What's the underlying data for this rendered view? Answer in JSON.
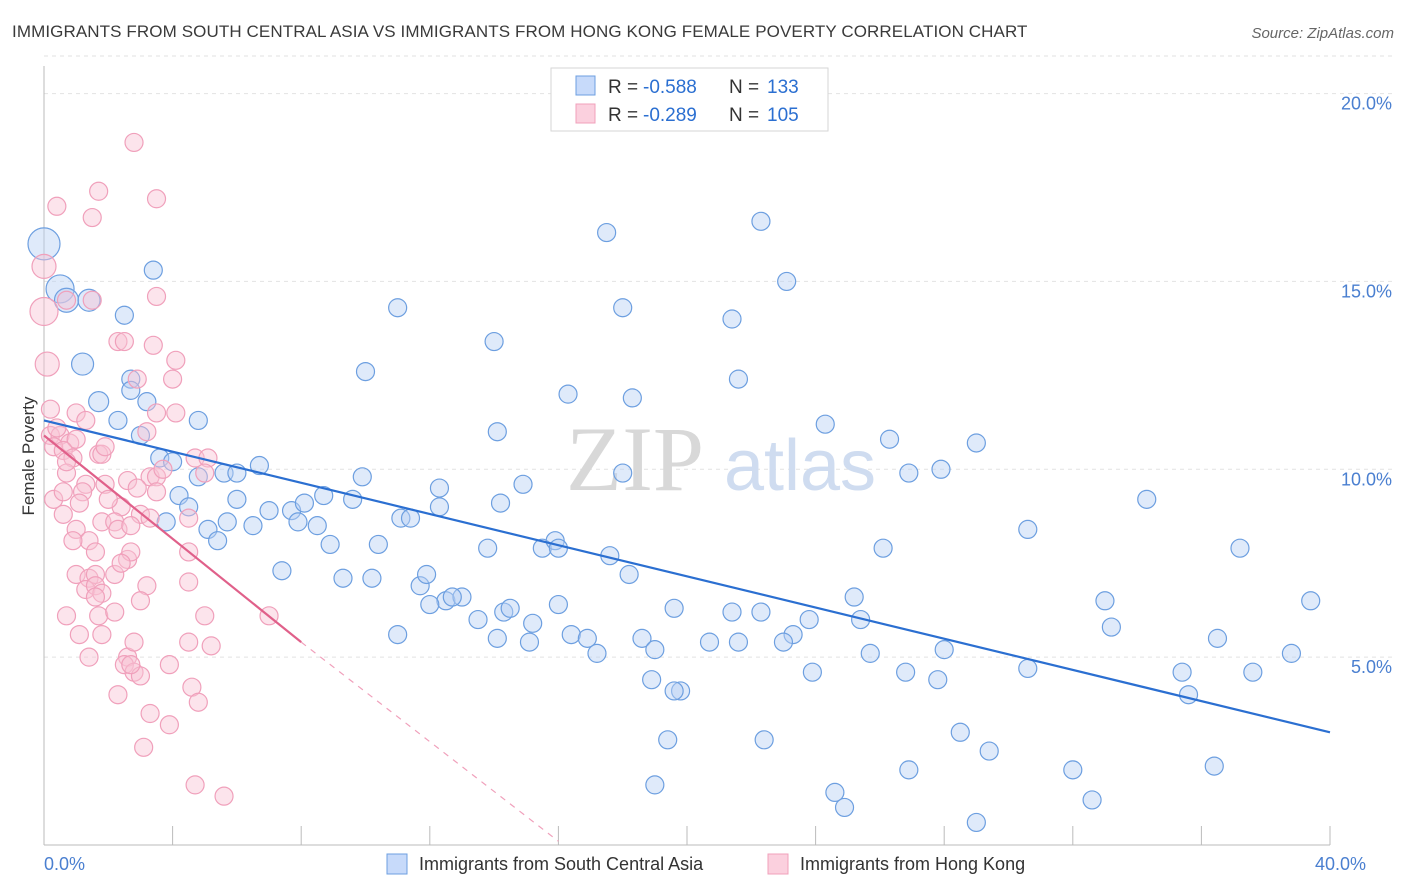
{
  "title": "IMMIGRANTS FROM SOUTH CENTRAL ASIA VS IMMIGRANTS FROM HONG KONG FEMALE POVERTY CORRELATION CHART",
  "source": "Source: ZipAtlas.com",
  "watermark": {
    "zip": "ZIP",
    "atlas": "atlas"
  },
  "colors": {
    "blue": "#6d9fe0",
    "blue_line": "#2b6fd1",
    "pink": "#f0a0bb",
    "pink_line": "#e0608a",
    "tick_text": "#4a7fd0"
  },
  "chart_data": {
    "type": "scatter",
    "xlabel": "",
    "ylabel": "Female Poverty",
    "xlim": [
      0,
      40
    ],
    "ylim": [
      0,
      21
    ],
    "x_ticks": [
      {
        "v": 0,
        "label": "0.0%"
      },
      {
        "v": 40,
        "label": "40.0%"
      }
    ],
    "y_ticks": [
      {
        "v": 5,
        "label": "5.0%"
      },
      {
        "v": 10,
        "label": "10.0%"
      },
      {
        "v": 15,
        "label": "15.0%"
      },
      {
        "v": 20,
        "label": "20.0%"
      }
    ],
    "legend": {
      "placement": "top-center",
      "rows": [
        {
          "r_label": "R =",
          "r_value": "-0.588",
          "n_label": "N =",
          "n_value": "133"
        },
        {
          "r_label": "R =",
          "r_value": "-0.289",
          "n_label": "N =",
          "n_value": "105"
        }
      ]
    },
    "series": [
      {
        "name": "Immigrants from South Central Asia",
        "color": "#6d9fe0",
        "trend": {
          "x": [
            0,
            40
          ],
          "y": [
            11.3,
            3.0
          ]
        },
        "points": [
          [
            0,
            16.0,
            16
          ],
          [
            0.5,
            14.8,
            14
          ],
          [
            0.7,
            14.5,
            12
          ],
          [
            1.4,
            14.5,
            11
          ],
          [
            3.4,
            15.3,
            9
          ],
          [
            2.5,
            14.1,
            9
          ],
          [
            1.2,
            12.8,
            11
          ],
          [
            2.7,
            12.4,
            9
          ],
          [
            1.7,
            11.8,
            10
          ],
          [
            2.7,
            12.1,
            9
          ],
          [
            3.2,
            11.8,
            9
          ],
          [
            2.3,
            11.3,
            9
          ],
          [
            3.0,
            10.9,
            9
          ],
          [
            4.8,
            11.3,
            9
          ],
          [
            3.6,
            10.3,
            9
          ],
          [
            4.0,
            10.2,
            9
          ],
          [
            5.6,
            9.9,
            9
          ],
          [
            6.0,
            9.9,
            9
          ],
          [
            6.7,
            10.1,
            9
          ],
          [
            4.8,
            9.8,
            9
          ],
          [
            4.2,
            9.3,
            9
          ],
          [
            4.5,
            9.0,
            9
          ],
          [
            6.0,
            9.2,
            9
          ],
          [
            3.8,
            8.6,
            9
          ],
          [
            5.7,
            8.6,
            9
          ],
          [
            5.1,
            8.4,
            9
          ],
          [
            5.4,
            8.1,
            9
          ],
          [
            6.5,
            8.5,
            9
          ],
          [
            7.0,
            8.9,
            9
          ],
          [
            7.7,
            8.9,
            9
          ],
          [
            8.1,
            9.1,
            9
          ],
          [
            8.7,
            9.3,
            9
          ],
          [
            9.6,
            9.2,
            9
          ],
          [
            9.9,
            9.8,
            9
          ],
          [
            7.9,
            8.6,
            9
          ],
          [
            8.5,
            8.5,
            9
          ],
          [
            8.9,
            8.0,
            9
          ],
          [
            10.4,
            8.0,
            9
          ],
          [
            11.1,
            8.7,
            9
          ],
          [
            11.4,
            8.7,
            9
          ],
          [
            7.4,
            7.3,
            9
          ],
          [
            9.3,
            7.1,
            9
          ],
          [
            10.2,
            7.1,
            9
          ],
          [
            11.7,
            6.9,
            9
          ],
          [
            11.9,
            7.2,
            9
          ],
          [
            12.5,
            6.5,
            9
          ],
          [
            13.0,
            6.6,
            9
          ],
          [
            12.0,
            6.4,
            9
          ],
          [
            12.7,
            6.6,
            9
          ],
          [
            13.5,
            6.0,
            9
          ],
          [
            11.0,
            5.6,
            9
          ],
          [
            14.1,
            5.5,
            9
          ],
          [
            13.8,
            7.9,
            9
          ],
          [
            14.2,
            9.1,
            9
          ],
          [
            12.3,
            9.0,
            9
          ],
          [
            14.3,
            6.2,
            9
          ],
          [
            14.5,
            6.3,
            9
          ],
          [
            14.9,
            9.6,
            9
          ],
          [
            15.2,
            5.9,
            9
          ],
          [
            15.1,
            5.4,
            9
          ],
          [
            15.5,
            7.9,
            9
          ],
          [
            15.9,
            8.1,
            9
          ],
          [
            16.0,
            6.4,
            9
          ],
          [
            16.4,
            5.6,
            9
          ],
          [
            16.0,
            7.9,
            9
          ],
          [
            16.9,
            5.5,
            9
          ],
          [
            17.2,
            5.1,
            9
          ],
          [
            17.6,
            7.7,
            9
          ],
          [
            18.0,
            9.9,
            9
          ],
          [
            18.2,
            7.2,
            9
          ],
          [
            18.6,
            5.5,
            9
          ],
          [
            18.9,
            4.4,
            9
          ],
          [
            19.0,
            5.2,
            9
          ],
          [
            19.6,
            6.3,
            9
          ],
          [
            19.8,
            4.1,
            9
          ],
          [
            19.6,
            4.1,
            9
          ],
          [
            19.4,
            2.8,
            9
          ],
          [
            18.3,
            11.9,
            9
          ],
          [
            16.3,
            12.0,
            9
          ],
          [
            14.0,
            13.4,
            9
          ],
          [
            12.3,
            9.5,
            9
          ],
          [
            10.0,
            12.6,
            9
          ],
          [
            11.0,
            14.3,
            9
          ],
          [
            14.1,
            11.0,
            9
          ],
          [
            17.5,
            16.3,
            9
          ],
          [
            18.0,
            14.3,
            9
          ],
          [
            19.0,
            1.6,
            9
          ],
          [
            20.7,
            5.4,
            9
          ],
          [
            21.6,
            5.4,
            9
          ],
          [
            21.4,
            14.0,
            9
          ],
          [
            21.6,
            12.4,
            9
          ],
          [
            21.4,
            6.2,
            9
          ],
          [
            22.3,
            6.2,
            9
          ],
          [
            22.4,
            2.8,
            9
          ],
          [
            22.3,
            16.6,
            9
          ],
          [
            23.3,
            5.6,
            9
          ],
          [
            23.0,
            5.4,
            9
          ],
          [
            23.8,
            6.0,
            9
          ],
          [
            23.1,
            15.0,
            9
          ],
          [
            23.9,
            4.6,
            9
          ],
          [
            25.2,
            6.6,
            9
          ],
          [
            25.4,
            6.0,
            9
          ],
          [
            24.6,
            1.4,
            9
          ],
          [
            24.3,
            11.2,
            9
          ],
          [
            25.7,
            5.1,
            9
          ],
          [
            24.9,
            1.0,
            9
          ],
          [
            26.1,
            7.9,
            9
          ],
          [
            26.3,
            10.8,
            9
          ],
          [
            26.8,
            4.6,
            9
          ],
          [
            26.9,
            2.0,
            9
          ],
          [
            26.9,
            9.9,
            9
          ],
          [
            27.8,
            4.4,
            9
          ],
          [
            27.9,
            10.0,
            9
          ],
          [
            28.0,
            5.2,
            9
          ],
          [
            28.5,
            3.0,
            9
          ],
          [
            29.0,
            10.7,
            9
          ],
          [
            29.4,
            2.5,
            9
          ],
          [
            30.6,
            8.4,
            9
          ],
          [
            29.0,
            0.6,
            9
          ],
          [
            30.6,
            4.7,
            9
          ],
          [
            32.0,
            2.0,
            9
          ],
          [
            32.6,
            1.2,
            9
          ],
          [
            33.0,
            6.5,
            9
          ],
          [
            33.2,
            5.8,
            9
          ],
          [
            34.3,
            9.2,
            9
          ],
          [
            35.4,
            4.6,
            9
          ],
          [
            35.6,
            4.0,
            9
          ],
          [
            36.4,
            2.1,
            9
          ],
          [
            36.5,
            5.5,
            9
          ],
          [
            37.2,
            7.9,
            9
          ],
          [
            37.6,
            4.6,
            9
          ],
          [
            38.8,
            5.1,
            9
          ],
          [
            39.4,
            6.5,
            9
          ]
        ]
      },
      {
        "name": "Immigrants from Hong Kong",
        "color": "#f0a0bb",
        "trend": {
          "x": [
            0,
            8
          ],
          "y": [
            10.9,
            5.4
          ]
        },
        "trend_dashed": {
          "x": [
            8,
            16
          ],
          "y": [
            5.4,
            0.1
          ]
        },
        "points": [
          [
            0,
            14.2,
            14
          ],
          [
            0,
            15.4,
            12
          ],
          [
            0.1,
            12.8,
            12
          ],
          [
            0.4,
            17.0,
            9
          ],
          [
            1.5,
            16.7,
            9
          ],
          [
            1.7,
            17.4,
            9
          ],
          [
            2.8,
            18.7,
            9
          ],
          [
            3.5,
            17.2,
            9
          ],
          [
            0.7,
            14.5,
            9
          ],
          [
            1.5,
            14.5,
            9
          ],
          [
            3.5,
            14.6,
            9
          ],
          [
            2.3,
            13.4,
            9
          ],
          [
            2.5,
            13.4,
            9
          ],
          [
            3.4,
            13.3,
            9
          ],
          [
            4.1,
            12.9,
            9
          ],
          [
            2.9,
            12.4,
            9
          ],
          [
            4.0,
            12.4,
            9
          ],
          [
            0.2,
            11.6,
            9
          ],
          [
            1.0,
            11.5,
            9
          ],
          [
            1.3,
            11.3,
            9
          ],
          [
            3.5,
            11.5,
            9
          ],
          [
            4.1,
            11.5,
            9
          ],
          [
            3.2,
            11.0,
            9
          ],
          [
            0.2,
            10.9,
            9
          ],
          [
            0.5,
            10.9,
            9
          ],
          [
            0.8,
            10.7,
            9
          ],
          [
            1.0,
            10.8,
            9
          ],
          [
            0.3,
            10.6,
            9
          ],
          [
            0.6,
            10.5,
            9
          ],
          [
            0.9,
            10.3,
            9
          ],
          [
            1.7,
            10.4,
            9
          ],
          [
            1.8,
            10.4,
            9
          ],
          [
            4.7,
            10.3,
            9
          ],
          [
            5.1,
            10.3,
            9
          ],
          [
            0.7,
            9.9,
            9
          ],
          [
            1.3,
            9.6,
            9
          ],
          [
            1.9,
            9.6,
            9
          ],
          [
            2.6,
            9.7,
            9
          ],
          [
            3.3,
            9.8,
            9
          ],
          [
            3.5,
            9.8,
            9
          ],
          [
            5.0,
            9.9,
            9
          ],
          [
            0.3,
            9.2,
            9
          ],
          [
            0.6,
            9.4,
            9
          ],
          [
            1.2,
            9.4,
            9
          ],
          [
            2.4,
            9.0,
            9
          ],
          [
            2.9,
            9.5,
            9
          ],
          [
            3.5,
            9.4,
            9
          ],
          [
            3.0,
            8.8,
            9
          ],
          [
            0.6,
            8.8,
            9
          ],
          [
            1.0,
            8.4,
            9
          ],
          [
            1.8,
            8.6,
            9
          ],
          [
            2.2,
            8.6,
            9
          ],
          [
            2.3,
            8.4,
            9
          ],
          [
            2.7,
            8.5,
            9
          ],
          [
            3.3,
            8.7,
            9
          ],
          [
            4.5,
            8.7,
            9
          ],
          [
            1.4,
            8.1,
            9
          ],
          [
            1.6,
            7.8,
            9
          ],
          [
            2.6,
            7.6,
            9
          ],
          [
            2.7,
            7.8,
            9
          ],
          [
            4.5,
            7.8,
            9
          ],
          [
            1.0,
            7.2,
            9
          ],
          [
            1.4,
            7.1,
            9
          ],
          [
            1.6,
            7.2,
            9
          ],
          [
            2.2,
            7.2,
            9
          ],
          [
            2.4,
            7.5,
            9
          ],
          [
            4.5,
            7.0,
            9
          ],
          [
            1.3,
            6.8,
            9
          ],
          [
            1.6,
            6.9,
            9
          ],
          [
            1.8,
            6.7,
            9
          ],
          [
            1.6,
            6.6,
            9
          ],
          [
            3.2,
            6.9,
            9
          ],
          [
            3.0,
            6.5,
            9
          ],
          [
            0.7,
            6.1,
            9
          ],
          [
            1.1,
            5.6,
            9
          ],
          [
            1.7,
            6.1,
            9
          ],
          [
            1.8,
            5.6,
            9
          ],
          [
            2.6,
            5.0,
            9
          ],
          [
            2.8,
            5.4,
            9
          ],
          [
            4.5,
            5.4,
            9
          ],
          [
            2.5,
            4.8,
            9
          ],
          [
            2.8,
            4.6,
            9
          ],
          [
            3.0,
            4.5,
            9
          ],
          [
            2.7,
            4.8,
            9
          ],
          [
            4.6,
            4.2,
            9
          ],
          [
            2.3,
            4.0,
            9
          ],
          [
            3.3,
            3.5,
            9
          ],
          [
            3.9,
            3.2,
            9
          ],
          [
            4.8,
            3.8,
            9
          ],
          [
            3.1,
            2.6,
            9
          ],
          [
            5.0,
            6.1,
            9
          ],
          [
            5.2,
            5.3,
            9
          ],
          [
            4.7,
            1.6,
            9
          ],
          [
            5.6,
            1.3,
            9
          ],
          [
            7.0,
            6.1,
            9
          ],
          [
            1.9,
            10.6,
            9
          ],
          [
            0.4,
            11.1,
            9
          ],
          [
            0.7,
            10.2,
            9
          ],
          [
            1.1,
            9.1,
            9
          ],
          [
            3.7,
            10.0,
            9
          ],
          [
            2.0,
            9.2,
            9
          ],
          [
            0.9,
            8.1,
            9
          ],
          [
            2.2,
            6.2,
            9
          ],
          [
            3.9,
            4.8,
            9
          ],
          [
            1.4,
            5.0,
            9
          ]
        ]
      }
    ],
    "bottom_legend": {
      "placement": "bottom-center",
      "items": [
        "Immigrants from South Central Asia",
        "Immigrants from Hong Kong"
      ]
    }
  }
}
